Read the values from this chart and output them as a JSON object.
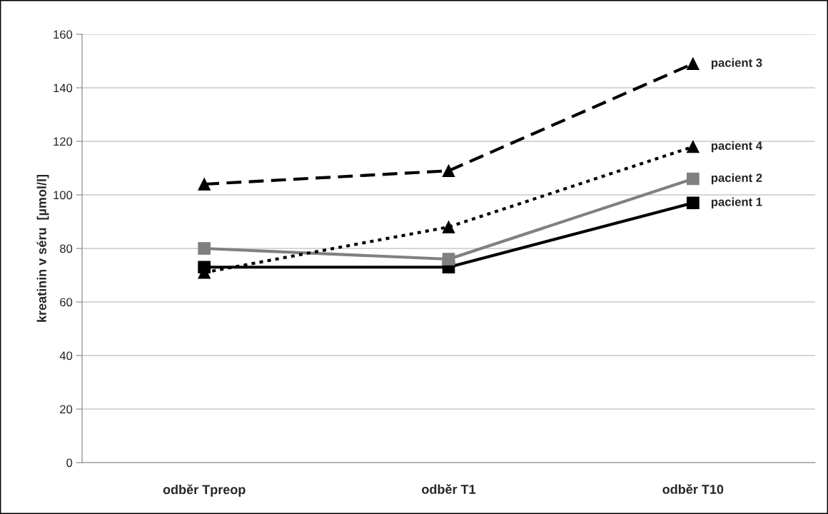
{
  "chart_data": {
    "type": "line",
    "ylabel": "kreatinin v séru  [µmol/l]",
    "categories": [
      "odběr Tpreop",
      "odběr T1",
      "odběr T10"
    ],
    "ylim": [
      0,
      160
    ],
    "yticks": [
      0,
      20,
      40,
      60,
      80,
      100,
      120,
      140,
      160
    ],
    "grid": "y",
    "legend": false,
    "series": [
      {
        "name": "pacient 1",
        "color": "#000000",
        "values": [
          73,
          73,
          97
        ],
        "marker": "square",
        "line_style": "solid"
      },
      {
        "name": "pacient 2",
        "color": "#808080",
        "values": [
          80,
          76,
          106
        ],
        "marker": "square",
        "line_style": "solid"
      },
      {
        "name": "pacient 4",
        "color": "#000000",
        "values": [
          71,
          88,
          118
        ],
        "marker": "triangle",
        "line_style": "dotted"
      },
      {
        "name": "pacient 3",
        "color": "#000000",
        "values": [
          104,
          109,
          149
        ],
        "marker": "triangle",
        "line_style": "dashed"
      }
    ]
  }
}
